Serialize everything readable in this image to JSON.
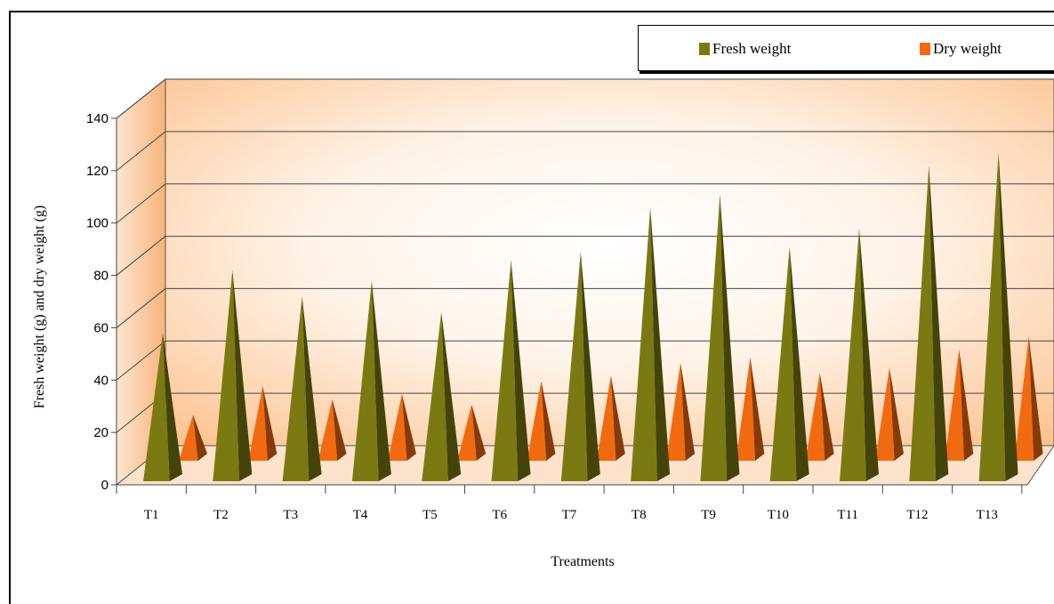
{
  "chart_data": {
    "type": "bar",
    "shape": "3d-cone",
    "categories": [
      "T1",
      "T2",
      "T3",
      "T4",
      "T5",
      "T6",
      "T7",
      "T8",
      "T9",
      "T10",
      "T11",
      "T12",
      "T13"
    ],
    "series": [
      {
        "name": "Fresh weight",
        "color": "#7b7a12",
        "values": [
          58,
          82,
          72,
          78,
          66,
          86,
          89,
          106,
          111,
          91,
          98,
          122,
          127
        ]
      },
      {
        "name": "Dry weight",
        "color": "#f26a10",
        "values": [
          25,
          36,
          31,
          33,
          29,
          38,
          40,
          45,
          47,
          41,
          43,
          50,
          55
        ]
      }
    ],
    "xlabel": "Treatments",
    "ylabel": "Fresh weight (g) and dry weight (g)",
    "ylim": [
      0,
      140
    ],
    "yticks": [
      0,
      20,
      40,
      60,
      80,
      100,
      120,
      140
    ],
    "grid": true,
    "legend_position": "top-right"
  }
}
